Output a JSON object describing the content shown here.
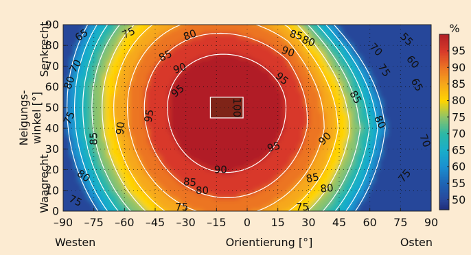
{
  "chart_data": {
    "type": "heatmap",
    "title": "",
    "xlabel": "Orientierung [°]",
    "x_left_label": "Westen",
    "x_right_label": "Osten",
    "ylabel_lines": [
      "Neigungs-",
      "winkel [°]"
    ],
    "y_bottom_label": "Waagrecht",
    "y_top_label": "Senkrecht",
    "xlim": [
      -90,
      90
    ],
    "ylim": [
      0,
      90
    ],
    "x_ticks": [
      -90,
      -75,
      -60,
      -45,
      -30,
      -15,
      0,
      15,
      30,
      45,
      60,
      75,
      90
    ],
    "x_tick_labels": [
      "–90",
      "–75",
      "–60",
      "–45",
      "–30",
      "–15",
      "0",
      "15",
      "30",
      "45",
      "60",
      "75",
      "90"
    ],
    "y_ticks": [
      0,
      10,
      20,
      30,
      40,
      50,
      60,
      70,
      80,
      90
    ],
    "y_tick_labels": [
      "0",
      "10",
      "20",
      "30",
      "40",
      "50",
      "60",
      "70",
      "80",
      "90"
    ],
    "grid": "dotted",
    "colorbar": {
      "unit": "%",
      "ticks": [
        50,
        55,
        60,
        65,
        70,
        75,
        80,
        85,
        90,
        95
      ],
      "tick_labels": [
        "50",
        "55",
        "60",
        "65",
        "70",
        "75",
        "80",
        "85",
        "90",
        "95"
      ],
      "range": [
        47,
        100
      ],
      "stops": [
        {
          "v": 47,
          "c": "#1f2b78"
        },
        {
          "v": 50,
          "c": "#28469a"
        },
        {
          "v": 55,
          "c": "#1f64b4"
        },
        {
          "v": 60,
          "c": "#1a8fd0"
        },
        {
          "v": 65,
          "c": "#19aeca"
        },
        {
          "v": 70,
          "c": "#2cb7a6"
        },
        {
          "v": 75,
          "c": "#8cc36a"
        },
        {
          "v": 80,
          "c": "#ffd400"
        },
        {
          "v": 85,
          "c": "#f6a81a"
        },
        {
          "v": 90,
          "c": "#ec7424"
        },
        {
          "v": 95,
          "c": "#d8392a"
        },
        {
          "v": 100,
          "c": "#b11f26"
        }
      ]
    },
    "contour_levels": [
      55,
      60,
      65,
      70,
      75,
      80,
      85,
      90,
      95,
      100
    ],
    "max_value": 100,
    "max_location": {
      "x": -10,
      "y": 50
    },
    "contour_labels": [
      {
        "text": "65",
        "x": -81,
        "y": 85,
        "angle": -35
      },
      {
        "text": "75",
        "x": -58,
        "y": 86,
        "angle": -25
      },
      {
        "text": "80",
        "x": -28,
        "y": 85,
        "angle": -20
      },
      {
        "text": "85",
        "x": -40,
        "y": 75,
        "angle": -25
      },
      {
        "text": "90",
        "x": -33,
        "y": 69,
        "angle": -20
      },
      {
        "text": "95",
        "x": -34,
        "y": 58,
        "angle": -40
      },
      {
        "text": "100",
        "x": -5,
        "y": 50,
        "angle": 90
      },
      {
        "text": "95",
        "x": -48,
        "y": 46,
        "angle": -80
      },
      {
        "text": "90",
        "x": -62,
        "y": 40,
        "angle": -85
      },
      {
        "text": "85",
        "x": -75,
        "y": 35,
        "angle": -90
      },
      {
        "text": "80",
        "x": -87,
        "y": 62,
        "angle": -70
      },
      {
        "text": "70",
        "x": -84,
        "y": 70,
        "angle": -60
      },
      {
        "text": "75",
        "x": -87,
        "y": 45,
        "angle": -65
      },
      {
        "text": "80",
        "x": -80,
        "y": 17,
        "angle": 35
      },
      {
        "text": "75",
        "x": -84,
        "y": 5,
        "angle": 25
      },
      {
        "text": "75",
        "x": -32,
        "y": 2,
        "angle": 0
      },
      {
        "text": "80",
        "x": -22,
        "y": 10,
        "angle": 0
      },
      {
        "text": "85",
        "x": -28,
        "y": 14,
        "angle": 5
      },
      {
        "text": "90",
        "x": -13,
        "y": 20,
        "angle": 0
      },
      {
        "text": "95",
        "x": 13,
        "y": 31,
        "angle": -15
      },
      {
        "text": "75",
        "x": 27,
        "y": 2,
        "angle": 0
      },
      {
        "text": "80",
        "x": 39,
        "y": 11,
        "angle": -5
      },
      {
        "text": "85",
        "x": 32,
        "y": 16,
        "angle": -10
      },
      {
        "text": "90",
        "x": 38,
        "y": 35,
        "angle": -45
      },
      {
        "text": "75",
        "x": 77,
        "y": 17,
        "angle": -50
      },
      {
        "text": "85",
        "x": 24,
        "y": 85,
        "angle": 15
      },
      {
        "text": "90",
        "x": 20,
        "y": 77,
        "angle": 20
      },
      {
        "text": "95",
        "x": 17,
        "y": 64,
        "angle": 40
      },
      {
        "text": "80",
        "x": 30,
        "y": 82,
        "angle": 20
      },
      {
        "text": "85",
        "x": 53,
        "y": 55,
        "angle": 60
      },
      {
        "text": "80",
        "x": 65,
        "y": 43,
        "angle": 65
      },
      {
        "text": "75",
        "x": 67,
        "y": 68,
        "angle": 55
      },
      {
        "text": "70",
        "x": 63,
        "y": 78,
        "angle": 45
      },
      {
        "text": "65",
        "x": 83,
        "y": 61,
        "angle": 60
      },
      {
        "text": "60",
        "x": 81,
        "y": 72,
        "angle": 50
      },
      {
        "text": "55",
        "x": 78,
        "y": 83,
        "angle": 45
      },
      {
        "text": "70",
        "x": 87,
        "y": 34,
        "angle": 70
      }
    ]
  }
}
